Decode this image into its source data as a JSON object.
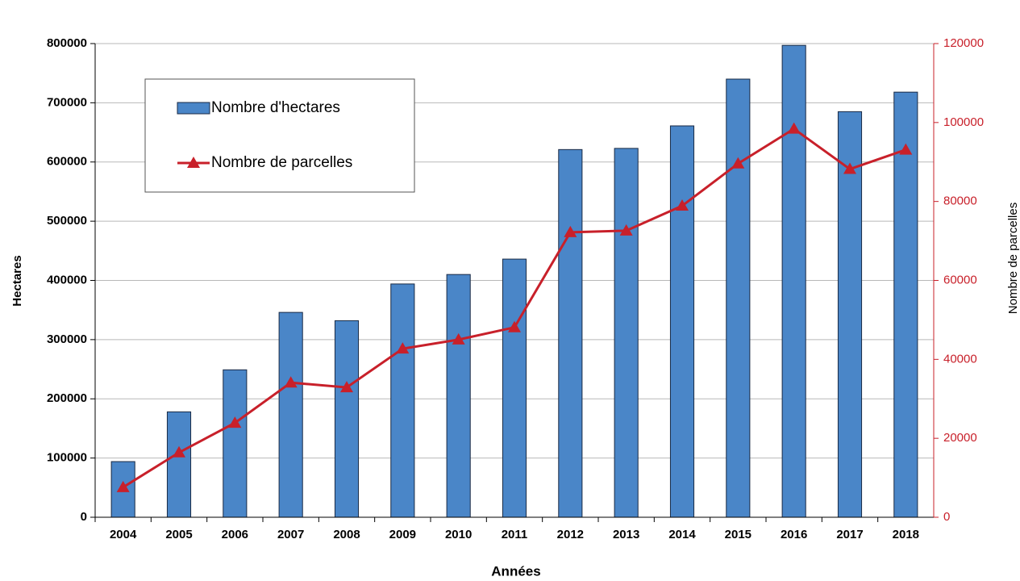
{
  "chart_data": {
    "type": "bar_line",
    "x_label": "Années",
    "y_label": "Hectares",
    "y2_label": "Nombre de parcelles",
    "categories": [
      "2004",
      "2005",
      "2006",
      "2007",
      "2008",
      "2009",
      "2010",
      "2011",
      "2012",
      "2013",
      "2014",
      "2015",
      "2016",
      "2017",
      "2018"
    ],
    "series": [
      {
        "name": "Nombre d'hectares",
        "type": "bar",
        "color": "#4a86c8",
        "values": [
          94000,
          178000,
          249000,
          346000,
          332000,
          394000,
          410000,
          436000,
          621000,
          623000,
          661000,
          740000,
          797000,
          685000,
          718000
        ]
      },
      {
        "name": "Nombre de parcelles",
        "type": "line",
        "color": "#c8202a",
        "axis": "y2",
        "values": [
          7600,
          16400,
          23900,
          34100,
          32900,
          42700,
          45000,
          48100,
          72200,
          72600,
          78900,
          89600,
          98400,
          88200,
          93100
        ]
      }
    ],
    "ylim": [
      0,
      800000
    ],
    "yticks": [
      0,
      100000,
      200000,
      300000,
      400000,
      500000,
      600000,
      700000,
      800000
    ],
    "y2lim": [
      0,
      120000
    ],
    "y2ticks": [
      0,
      20000,
      40000,
      60000,
      80000,
      100000,
      120000
    ],
    "y2_color": "#c8202a",
    "grid": true
  }
}
